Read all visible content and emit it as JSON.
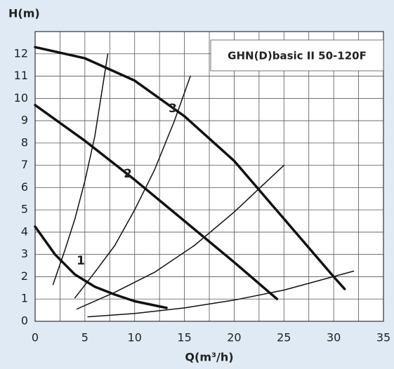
{
  "chart_data": {
    "type": "line",
    "title": "GHN(D)basic II 50-120F",
    "y_label": "H(m)",
    "x_label": "Q(m³/h)",
    "xlim": [
      0,
      35
    ],
    "xticks": [
      0,
      5,
      10,
      15,
      20,
      25,
      30,
      35
    ],
    "xminorticks": [
      2.5,
      7.5,
      12.5,
      17.5,
      22.5,
      27.5,
      32.5
    ],
    "ylim": [
      0,
      13
    ],
    "yticks": [
      0,
      1,
      2,
      3,
      4,
      5,
      6,
      7,
      8,
      9,
      10,
      11,
      12
    ],
    "grid": true,
    "series": [
      {
        "name": "1",
        "color": "#111111",
        "width": 3.5,
        "x": [
          0,
          2,
          4,
          6,
          8,
          10,
          13.2
        ],
        "values": [
          4.25,
          3.0,
          2.1,
          1.55,
          1.2,
          0.9,
          0.6
        ]
      },
      {
        "name": "2",
        "color": "#111111",
        "width": 3.5,
        "x": [
          0,
          5,
          10,
          15,
          20,
          24.3
        ],
        "values": [
          9.7,
          8.1,
          6.35,
          4.5,
          2.65,
          1.0
        ]
      },
      {
        "name": "3",
        "color": "#111111",
        "width": 3.5,
        "x": [
          0,
          5,
          10,
          15,
          20,
          25,
          30,
          31.1
        ],
        "values": [
          12.3,
          11.8,
          10.8,
          9.2,
          7.2,
          4.6,
          2.0,
          1.45
        ]
      },
      {
        "color": "#111111",
        "width": 1.5,
        "x": [
          1.8,
          3,
          4,
          5,
          6,
          7.3
        ],
        "values": [
          1.65,
          3.2,
          4.6,
          6.3,
          8.3,
          12.0
        ]
      },
      {
        "color": "#111111",
        "width": 1.5,
        "x": [
          4,
          6,
          8,
          10,
          12,
          14,
          15.6
        ],
        "values": [
          1.05,
          2.2,
          3.4,
          5.0,
          6.8,
          9.0,
          11.0
        ]
      },
      {
        "color": "#111111",
        "width": 1.5,
        "x": [
          4.2,
          8,
          12,
          16,
          20,
          25
        ],
        "values": [
          0.55,
          1.3,
          2.2,
          3.4,
          4.9,
          7.0
        ]
      },
      {
        "color": "#111111",
        "width": 1.5,
        "x": [
          5.3,
          10,
          15,
          20,
          25,
          32
        ],
        "values": [
          0.2,
          0.35,
          0.6,
          0.95,
          1.4,
          2.25
        ]
      }
    ]
  }
}
